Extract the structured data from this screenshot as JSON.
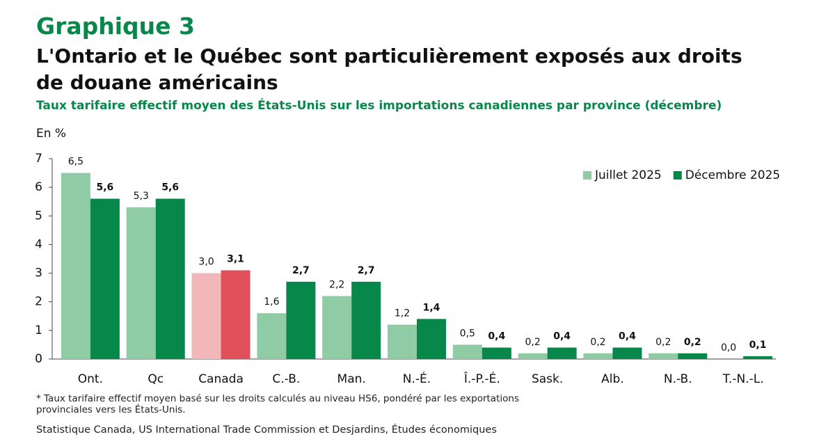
{
  "chart_data": {
    "type": "bar",
    "label": "Graphique 3",
    "title": "L'Ontario et le Québec sont particulièrement exposés aux droits de douane américains",
    "subtitle": "Taux tarifaire effectif moyen des États-Unis sur les importations canadiennes par province (décembre)",
    "y_label": "En %",
    "categories": [
      "Ont.",
      "Qc",
      "Canada",
      "C.-B.",
      "Man.",
      "N.-É.",
      "Î.-P.-É.",
      "Sask.",
      "Alb.",
      "N.-B.",
      "T.-N.-L."
    ],
    "series": [
      {
        "name": "Juillet 2025",
        "color": "#8fcca6",
        "colors": [
          "#8fcca6",
          "#8fcca6",
          "#f2b8b9",
          "#8fcca6",
          "#8fcca6",
          "#8fcca6",
          "#8fcca6",
          "#8fcca6",
          "#8fcca6",
          "#8fcca6",
          "#8fcca6"
        ],
        "values": [
          6.5,
          5.3,
          3.0,
          1.6,
          2.2,
          1.2,
          0.5,
          0.2,
          0.2,
          0.2,
          0.0
        ],
        "value_labels": [
          "6,5",
          "5,3",
          "3,0",
          "1,6",
          "2,2",
          "1,2",
          "0,5",
          "0,2",
          "0,2",
          "0,2",
          "0,0"
        ]
      },
      {
        "name": "Décembre 2025",
        "color": "#08874a",
        "colors": [
          "#08874a",
          "#08874a",
          "#e0505a",
          "#08874a",
          "#08874a",
          "#08874a",
          "#08874a",
          "#08874a",
          "#08874a",
          "#08874a",
          "#08874a"
        ],
        "values": [
          5.6,
          5.6,
          3.1,
          2.7,
          2.7,
          1.4,
          0.4,
          0.4,
          0.4,
          0.2,
          0.1
        ],
        "value_labels": [
          "5,6",
          "5,6",
          "3,1",
          "2,7",
          "2,7",
          "1,4",
          "0,4",
          "0,4",
          "0,4",
          "0,2",
          "0,1"
        ]
      }
    ],
    "ylim": [
      0,
      7
    ],
    "yticks": [
      0,
      1,
      2,
      3,
      4,
      5,
      6,
      7
    ],
    "grid": false,
    "legend": "upper right",
    "footnote": "* Taux tarifaire effectif moyen basé sur les droits calculés au niveau HS6, pondéré par les exportations provinciales vers les États-Unis.",
    "source": "Statistique Canada, US International Trade Commission et Desjardins, Études économiques"
  }
}
